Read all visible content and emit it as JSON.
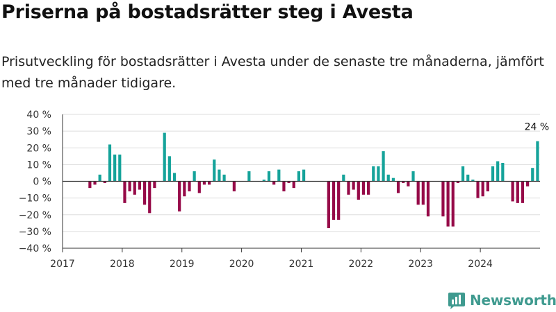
{
  "title": "Priserna på bostadsrätter steg i Avesta",
  "subtitle": "Prisutveckling för bostadsrätter i Avesta under de senaste tre månaderna, jämfört med tre månader tidigare.",
  "brand": {
    "name": "Newsworthy",
    "color": "#3f9a8f"
  },
  "chart_data": {
    "type": "bar",
    "title": "",
    "xlabel": "",
    "ylabel": "",
    "ylim": [
      -40,
      40
    ],
    "yticks": [
      "40 %",
      "30 %",
      "20 %",
      "10 %",
      "0 %",
      "−10 %",
      "−20 %",
      "−30 %",
      "−40 %"
    ],
    "ytick_values": [
      40,
      30,
      20,
      10,
      0,
      -10,
      -20,
      -30,
      -40
    ],
    "xticks": [
      "2017",
      "2018",
      "2019",
      "2020",
      "2021",
      "2022",
      "2023",
      "2024"
    ],
    "x_start": "2017-01",
    "x_end": "2025-01",
    "grid": true,
    "colors": {
      "positive": "#15a39a",
      "negative": "#960a48",
      "grid": "#dddddd",
      "zero_line": "#333333"
    },
    "annotation": {
      "text": "24 %",
      "month": "2024-12"
    },
    "months": [
      "2017-06",
      "2017-07",
      "2017-08",
      "2017-09",
      "2017-10",
      "2017-11",
      "2017-12",
      "2018-01",
      "2018-02",
      "2018-03",
      "2018-04",
      "2018-05",
      "2018-06",
      "2018-07",
      "2018-08",
      "2018-09",
      "2018-10",
      "2018-11",
      "2018-12",
      "2019-01",
      "2019-02",
      "2019-03",
      "2019-04",
      "2019-05",
      "2019-06",
      "2019-07",
      "2019-08",
      "2019-09",
      "2019-10",
      "2019-11",
      "2019-12",
      "2020-01",
      "2020-02",
      "2020-03",
      "2020-04",
      "2020-05",
      "2020-06",
      "2020-07",
      "2020-08",
      "2020-09",
      "2020-10",
      "2020-11",
      "2020-12",
      "2021-01",
      "2021-02",
      "2021-03",
      "2021-04",
      "2021-05",
      "2021-06",
      "2021-07",
      "2021-08",
      "2021-09",
      "2021-10",
      "2021-11",
      "2021-12",
      "2022-01",
      "2022-02",
      "2022-03",
      "2022-04",
      "2022-05",
      "2022-06",
      "2022-07",
      "2022-08",
      "2022-09",
      "2022-10",
      "2022-11",
      "2022-12",
      "2023-01",
      "2023-02",
      "2023-03",
      "2023-04",
      "2023-05",
      "2023-06",
      "2023-07",
      "2023-08",
      "2023-09",
      "2023-10",
      "2023-11",
      "2023-12",
      "2024-01",
      "2024-02",
      "2024-03",
      "2024-04",
      "2024-05",
      "2024-06",
      "2024-07",
      "2024-08",
      "2024-09",
      "2024-10",
      "2024-11",
      "2024-12"
    ],
    "values": [
      -4,
      -2,
      4,
      -1,
      22,
      16,
      16,
      -13,
      -6,
      -8,
      -5,
      -14,
      -19,
      -4,
      0,
      29,
      15,
      5,
      -18,
      -9,
      -6,
      6,
      -7,
      -2,
      -2,
      13,
      7,
      4,
      0,
      -6,
      0,
      0,
      6,
      0,
      0,
      1,
      6,
      -2,
      7,
      -6,
      -1,
      -4,
      6,
      7,
      0,
      0,
      0,
      0,
      -28,
      -23,
      -23,
      4,
      -8,
      -5,
      -11,
      -8,
      -8,
      9,
      9,
      18,
      4,
      2,
      -7,
      -1,
      -3,
      6,
      -14,
      -14,
      -21,
      0,
      0,
      -21,
      -27,
      -27,
      -1,
      9,
      4,
      1,
      -10,
      -9,
      -6,
      9,
      12,
      11,
      0,
      -12,
      -13,
      -13,
      -3,
      8,
      24
    ]
  }
}
